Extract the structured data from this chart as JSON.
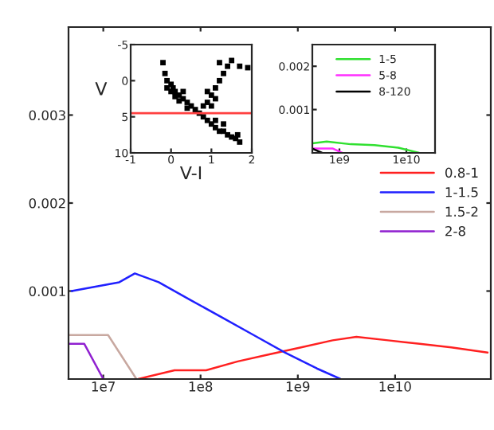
{
  "chart_data": [
    {
      "type": "line",
      "xlim": [
        4390000.0,
        96400000000.0
      ],
      "log": "x",
      "ylim": [
        0,
        0.004
      ],
      "xticks": [
        {
          "value": 10000000.0,
          "label": "1e7"
        },
        {
          "value": 100000000.0,
          "label": "1e8"
        },
        {
          "value": 1000000000.0,
          "label": "1e9"
        },
        {
          "value": 10000000000.0,
          "label": "1e10"
        }
      ],
      "yticks": [
        0.001,
        0.002,
        0.003
      ],
      "legend": "right",
      "grid": false,
      "series": [
        {
          "name": "0.8-1",
          "color": "#ff2020",
          "x": [
            22800000.0,
            54000000.0,
            114000000.0,
            241000000.0,
            509000000.0,
            1080000000.0,
            2280000000.0,
            4000000000.0,
            8450000000.0,
            17900000000.0,
            37800000000.0,
            89300000000.0
          ],
          "values": [
            0,
            0.0001,
            0.0001,
            0.0002,
            0.00028,
            0.00036,
            0.00044,
            0.00048,
            0.00044,
            0.0004,
            0.00036,
            0.0003
          ]
        },
        {
          "name": "1-1.5",
          "color": "#2020ff",
          "x": [
            4730000.0,
            8300000.0,
            14600000.0,
            21100000.0,
            37100000.0,
            78300000.0,
            166000000.0,
            351000000.0,
            741000000.0,
            1570000000.0,
            2750000000.0
          ],
          "values": [
            0.001,
            0.00105,
            0.0011,
            0.0012,
            0.0011,
            0.0009,
            0.0007,
            0.0005,
            0.0003,
            0.00012,
            0
          ]
        },
        {
          "name": "1.5-2",
          "color": "#c8a8a0",
          "x": [
            4390000.0,
            11200000.0,
            21900000.0
          ],
          "values": [
            0.0005,
            0.0005,
            0
          ]
        },
        {
          "name": "2-8",
          "color": "#9020d0",
          "x": [
            4390000.0,
            6380000.0,
            10000000.0
          ],
          "values": [
            0.0004,
            0.0004,
            0
          ]
        }
      ]
    },
    {
      "type": "scatter",
      "xlabel": "V-I",
      "ylabel": "V",
      "xlim": [
        -1,
        2
      ],
      "ylim": [
        10,
        -5
      ],
      "xticks": [
        -1,
        0,
        1,
        2
      ],
      "yticks": [
        -5,
        0,
        5,
        10
      ],
      "marker": "square",
      "x": [
        -0.2,
        -0.15,
        -0.1,
        0,
        0.05,
        0.1,
        0.2,
        0.3,
        0.4,
        0.5,
        0.6,
        0.7,
        0,
        0.2,
        0.4,
        0.1,
        -0.1,
        0.3,
        0.8,
        0.9,
        1,
        1.1,
        1.2,
        1.3,
        1.4,
        1.2,
        1.5,
        1.7,
        1.9,
        1,
        1.1,
        0.9,
        0.8,
        0.9,
        1,
        1.1,
        1.2,
        1.3,
        1.4,
        1.5,
        1.6,
        1.7,
        1.65,
        1.1,
        1.3
      ],
      "values": [
        -2.5,
        -1,
        0,
        0.5,
        1,
        1.5,
        2,
        2.5,
        3,
        3.5,
        4,
        4.5,
        1.5,
        2.8,
        3.8,
        2.2,
        1,
        1.5,
        3.5,
        3,
        2,
        1,
        0,
        -1,
        -2,
        -2.5,
        -2.8,
        -2,
        -1.8,
        3.5,
        2.5,
        1.5,
        5,
        5.5,
        6,
        6.5,
        7,
        7,
        7.5,
        7.8,
        8,
        8.5,
        7.5,
        5.5,
        6
      ],
      "color": "#000000",
      "ref_lines": [
        {
          "axis": "y",
          "value": 4.5,
          "color": "#ff4040"
        }
      ]
    },
    {
      "type": "line",
      "xlim": [
        394000000.0,
        26800000000.0
      ],
      "log": "x",
      "ylim": [
        0,
        0.0025
      ],
      "xticks": [
        {
          "value": 1000000000.0,
          "label": "1e9"
        },
        {
          "value": 10000000000.0,
          "label": "1e10"
        }
      ],
      "yticks": [
        0.001,
        0.002
      ],
      "legend": "top",
      "series": [
        {
          "name": "1-5",
          "color": "#30e030",
          "x": [
            394000000.0,
            645000000.0,
            1470000000.0,
            3340000000.0,
            7600000000.0,
            15500000000.0
          ],
          "values": [
            0.00022,
            0.00026,
            0.0002,
            0.00018,
            0.00012,
            0
          ]
        },
        {
          "name": "5-8",
          "color": "#ff30ff",
          "x": [
            394000000.0,
            800000000.0,
            1100000000.0
          ],
          "values": [
            0.0001,
            0.0001,
            0
          ]
        },
        {
          "name": "8-120",
          "color": "#000000",
          "x": [
            394000000.0,
            550000000.0
          ],
          "values": [
            0.0001,
            0
          ]
        }
      ]
    }
  ]
}
